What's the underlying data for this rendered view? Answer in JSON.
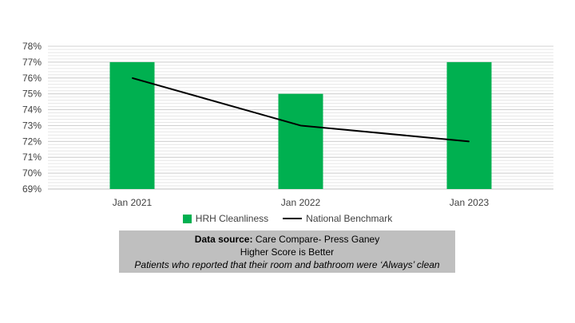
{
  "chart_data": {
    "type": "bar",
    "categories": [
      "Jan 2021",
      "Jan 2022",
      "Jan 2023"
    ],
    "series": [
      {
        "name": "HRH Cleanliness",
        "kind": "bar",
        "color": "#00b050",
        "values": [
          77,
          75,
          77
        ]
      },
      {
        "name": "National Benchmark",
        "kind": "line",
        "color": "#000000",
        "values": [
          76,
          73,
          72
        ]
      }
    ],
    "y_ticks": [
      "69%",
      "70%",
      "71%",
      "72%",
      "73%",
      "74%",
      "75%",
      "76%",
      "77%",
      "78%"
    ],
    "ylim": [
      69,
      78
    ],
    "grid": true,
    "legend_position": "bottom"
  },
  "note": {
    "source_label": "Data source:",
    "source_value": " Care Compare- Press Ganey",
    "line2": "Higher Score is Better",
    "line3": "Patients who reported that their room and bathroom were ‘Always’ clean"
  }
}
